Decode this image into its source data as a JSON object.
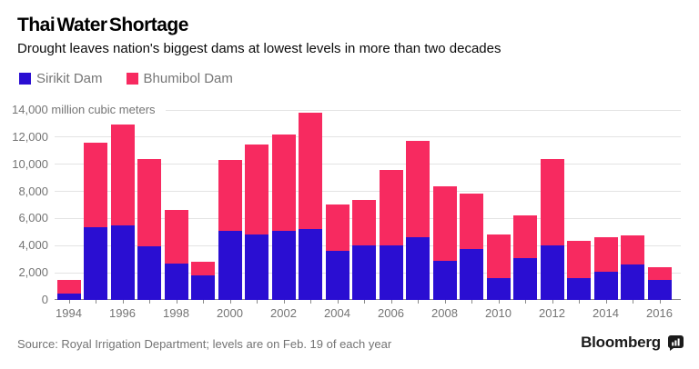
{
  "header": {
    "title": "Thai Water Shortage",
    "subtitle": "Drought leaves nation's biggest dams at lowest levels in more than two decades"
  },
  "legend": {
    "items": [
      {
        "label": "Sirikit Dam",
        "color": "#2a0ed2"
      },
      {
        "label": "Bhumibol Dam",
        "color": "#f72a60"
      }
    ]
  },
  "chart_data": {
    "type": "bar",
    "stacked": true,
    "title": "Thai Water Shortage",
    "subtitle": "Drought leaves nation's biggest dams at lowest levels in more than two decades",
    "unit": "million cubic meters",
    "top_axis_label": "14,000 million cubic meters",
    "categories": [
      1994,
      1995,
      1996,
      1997,
      1998,
      1999,
      2000,
      2001,
      2002,
      2003,
      2004,
      2005,
      2006,
      2007,
      2008,
      2009,
      2010,
      2011,
      2012,
      2013,
      2014,
      2015,
      2016
    ],
    "series": [
      {
        "name": "Sirikit Dam",
        "color": "#2a0ed2",
        "values": [
          500,
          5350,
          5500,
          3950,
          2700,
          1800,
          5100,
          4800,
          5100,
          5200,
          3650,
          4050,
          4000,
          4600,
          2850,
          3750,
          1600,
          3100,
          4000,
          1600,
          2100,
          2600,
          1450
        ]
      },
      {
        "name": "Bhumibol Dam",
        "color": "#f72a60",
        "values": [
          1000,
          6250,
          7450,
          6450,
          3900,
          1000,
          5200,
          6650,
          7100,
          8600,
          3400,
          3350,
          5600,
          7150,
          5500,
          4100,
          3200,
          3150,
          6400,
          2750,
          2550,
          2150,
          950
        ]
      }
    ],
    "totals": [
      1500,
      11600,
      12950,
      10400,
      6600,
      2800,
      10300,
      11450,
      12200,
      13800,
      7050,
      7400,
      9600,
      11750,
      8350,
      7850,
      4800,
      6250,
      10400,
      4350,
      4650,
      4750,
      2400
    ],
    "ylim": [
      0,
      14000
    ],
    "ytick_step": 2000,
    "ytick_labels": [
      "0",
      "2,000",
      "4,000",
      "6,000",
      "8,000",
      "10,000",
      "12,000"
    ],
    "xtick_labels": [
      "1994",
      "1996",
      "1998",
      "2000",
      "2002",
      "2004",
      "2006",
      "2008",
      "2010",
      "2012",
      "2014",
      "2016"
    ],
    "grid": true,
    "legend_position": "top-left",
    "colors": {
      "grid": "#e4e4e4",
      "axis": "#8a8a8a",
      "tick_text": "#757575"
    }
  },
  "footer": {
    "source": "Source: Royal Irrigation Department; levels are on Feb. 19 of each year",
    "brand": "Bloomberg"
  }
}
